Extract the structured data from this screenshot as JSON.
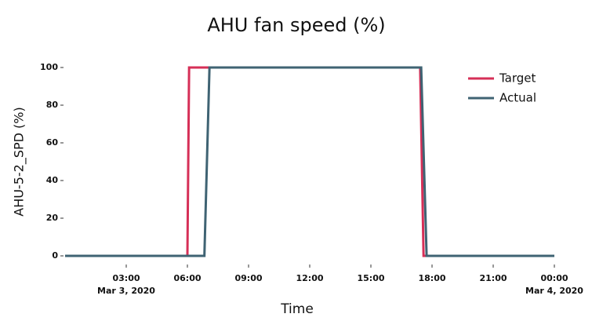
{
  "chart_data": {
    "type": "line",
    "title": "AHU fan speed (%)",
    "x_label": "Time",
    "y_label": "AHU-5-2_SPD (%)",
    "xlim": [
      "2020-03-03T00:00",
      "2020-03-04T00:00"
    ],
    "xticks": [
      {
        "value": "2020-03-03T03:00",
        "label": "03:00",
        "sublabel": "Mar 3, 2020"
      },
      {
        "value": "2020-03-03T06:00",
        "label": "06:00"
      },
      {
        "value": "2020-03-03T09:00",
        "label": "09:00"
      },
      {
        "value": "2020-03-03T12:00",
        "label": "12:00"
      },
      {
        "value": "2020-03-03T15:00",
        "label": "15:00"
      },
      {
        "value": "2020-03-03T18:00",
        "label": "18:00"
      },
      {
        "value": "2020-03-03T21:00",
        "label": "21:00"
      },
      {
        "value": "2020-03-04T00:00",
        "label": "00:00",
        "sublabel": "Mar 4, 2020"
      }
    ],
    "ylim": [
      0,
      100
    ],
    "yticks": [
      0,
      20,
      40,
      60,
      80,
      100
    ],
    "grid": false,
    "legend": "top-right",
    "series": [
      {
        "name": "Target",
        "color": "#d62f57",
        "x": [
          "2020-03-03T00:00",
          "2020-03-03T06:00",
          "2020-03-03T06:05",
          "2020-03-03T17:25",
          "2020-03-03T17:35",
          "2020-03-04T00:00"
        ],
        "values": [
          0,
          0,
          100,
          100,
          0,
          0
        ]
      },
      {
        "name": "Actual",
        "color": "#3f6373",
        "x": [
          "2020-03-03T00:00",
          "2020-03-03T06:50",
          "2020-03-03T07:05",
          "2020-03-03T17:28",
          "2020-03-03T17:44",
          "2020-03-04T00:00"
        ],
        "values": [
          0,
          0,
          100,
          100,
          0,
          0
        ]
      }
    ]
  }
}
